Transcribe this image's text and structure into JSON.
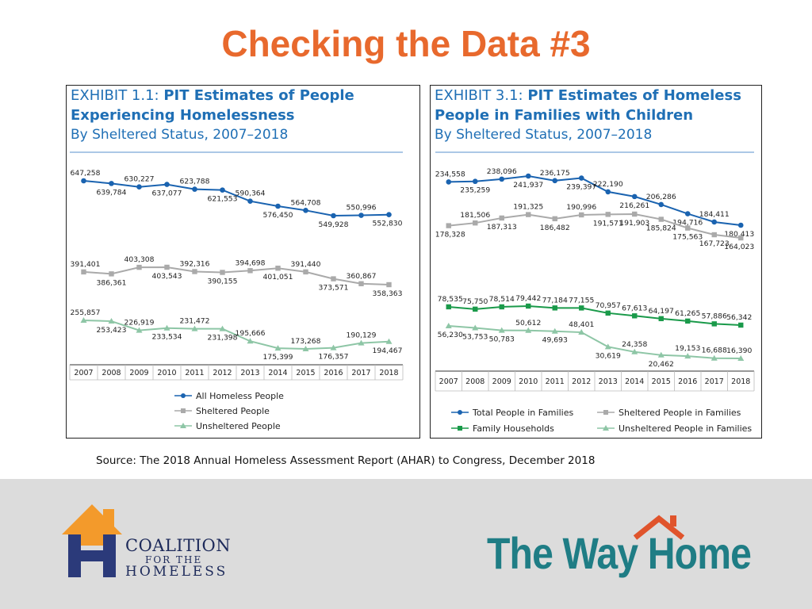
{
  "slide": {
    "title": "Checking the Data #3",
    "source": "Source: The 2018 Annual Homeless Assessment Report (AHAR) to Congress, December 2018"
  },
  "logos": {
    "coalition": {
      "line1": "COALITION",
      "line2": "FOR THE",
      "line3": "HOMELESS"
    },
    "wayhome": {
      "text": "The Way Home"
    }
  },
  "colors": {
    "title": "#e8692d",
    "exhibit_text": "#1f6fb5",
    "footer_band": "#dcdcdc",
    "coalition_orange": "#f39a2b",
    "coalition_navy": "#2b3a7a",
    "wayhome_teal": "#1f7d85",
    "wayhome_roof": "#e0542c"
  },
  "chart_data": [
    {
      "type": "line",
      "exhibit_label": "EXHIBIT 1.1:",
      "title_lines": [
        "PIT Estimates of People",
        "Experiencing Homelessness"
      ],
      "subtitle": "By Sheltered Status, 2007–2018",
      "categories": [
        "2007",
        "2008",
        "2009",
        "2010",
        "2011",
        "2012",
        "2013",
        "2014",
        "2015",
        "2016",
        "2017",
        "2018"
      ],
      "legend_position": "bottom-center",
      "series": [
        {
          "name": "All Homeless People",
          "color": "#1a63b0",
          "marker": "circle",
          "values": [
            647258,
            639784,
            630227,
            637077,
            623788,
            621553,
            590364,
            576450,
            564708,
            549928,
            550996,
            552830
          ],
          "labels": [
            "647,258",
            "639,784",
            "630,227",
            "637,077",
            "623,788",
            "621,553",
            "590,364",
            "576,450",
            "564,708",
            "549,928",
            "550,996",
            "552,830"
          ]
        },
        {
          "name": "Sheltered People",
          "color": "#aaaaaa",
          "marker": "square",
          "values": [
            391401,
            386361,
            403308,
            403543,
            392316,
            390155,
            394698,
            401051,
            391440,
            373571,
            360867,
            358363
          ],
          "labels": [
            "391,401",
            "386,361",
            "403,308",
            "403,543",
            "392,316",
            "390,155",
            "394,698",
            "401,051",
            "391,440",
            "373,571",
            "360,867",
            "358,363"
          ]
        },
        {
          "name": "Unsheltered People",
          "color": "#8ec6a6",
          "marker": "triangle",
          "values": [
            255857,
            253423,
            226919,
            233534,
            231472,
            231398,
            195666,
            175399,
            173268,
            176357,
            190129,
            194467
          ],
          "labels": [
            "255,857",
            "253,423",
            "226,919",
            "233,534",
            "231,472",
            "231,398",
            "195,666",
            "175,399",
            "173,268",
            "176,357",
            "190,129",
            "194,467"
          ]
        }
      ]
    },
    {
      "type": "line",
      "exhibit_label": "EXHIBIT 3.1:",
      "title_lines": [
        "PIT Estimates of Homeless",
        "People in Families with Children"
      ],
      "subtitle": "By Sheltered Status, 2007–2018",
      "categories": [
        "2007",
        "2008",
        "2009",
        "2010",
        "2011",
        "2012",
        "2013",
        "2014",
        "2015",
        "2016",
        "2017",
        "2018"
      ],
      "legend_position": "bottom-center",
      "series": [
        {
          "name": "Total People in Families",
          "color": "#1a63b0",
          "marker": "circle",
          "values": [
            234558,
            235259,
            238096,
            241937,
            236175,
            239397,
            222190,
            216261,
            206286,
            194716,
            184411,
            180413
          ],
          "labels": [
            "234,558",
            "235,259",
            "238,096",
            "241,937",
            "236,175",
            "239,397",
            "222,190",
            "216,261",
            "206,286",
            "194,716",
            "184,411",
            "180,413"
          ]
        },
        {
          "name": "Sheltered People in Families",
          "color": "#aaaaaa",
          "marker": "square",
          "values": [
            178328,
            181506,
            187313,
            191325,
            186482,
            190996,
            191571,
            191903,
            185824,
            175563,
            167723,
            164023
          ],
          "labels": [
            "178,328",
            "181,506",
            "187,313",
            "191,325",
            "186,482",
            "190,996",
            "191,571",
            "191,903",
            "185,824",
            "175,563",
            "167,723",
            "164,023"
          ]
        },
        {
          "name": "Family Households",
          "color": "#1a9a4a",
          "marker": "square",
          "values": [
            78535,
            75750,
            78514,
            79442,
            77184,
            77155,
            70957,
            67613,
            64197,
            61265,
            57886,
            56342
          ],
          "labels": [
            "78,535",
            "75,750",
            "78,514",
            "79,442",
            "77,184",
            "77,155",
            "70,957",
            "67,613",
            "64,197",
            "61,265",
            "57,886",
            "56,342"
          ]
        },
        {
          "name": "Unsheltered People in Families",
          "color": "#8ec6a6",
          "marker": "triangle",
          "values": [
            56230,
            53753,
            50783,
            50612,
            49693,
            48401,
            30619,
            24358,
            20462,
            19153,
            16688,
            16390
          ],
          "labels": [
            "56,230",
            "53,753",
            "50,783",
            "50,612",
            "49,693",
            "48,401",
            "30,619",
            "24,358",
            "20,462",
            "19,153",
            "16,688",
            "16,390"
          ]
        }
      ]
    }
  ]
}
